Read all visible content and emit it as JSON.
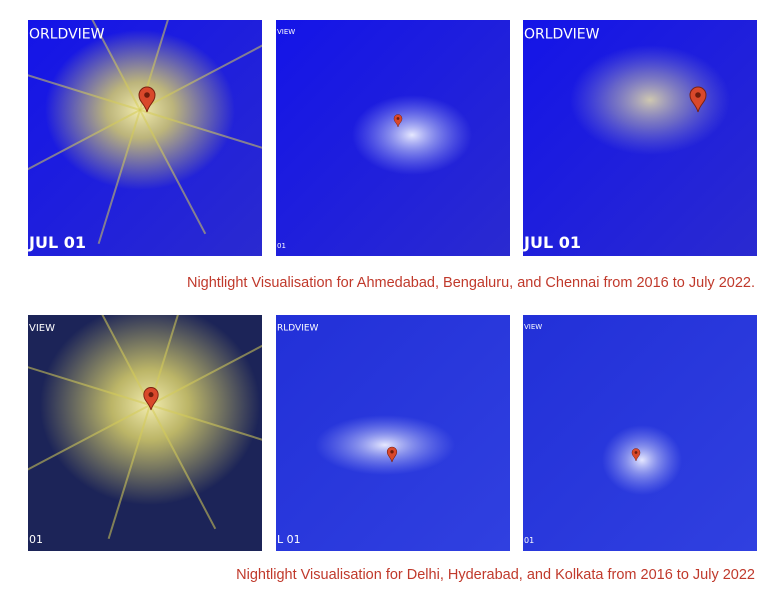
{
  "rows": [
    {
      "images": [
        {
          "top": "ORLDVIEW",
          "bottom": "JUL 01"
        },
        {
          "top": "VIEW",
          "bottom": "01"
        },
        {
          "top": "ORLDVIEW",
          "bottom": "JUL 01"
        }
      ],
      "caption": "Nightlight Visualisation for Ahmedabad, Bengaluru, and Chennai from 2016 to July 2022."
    },
    {
      "images": [
        {
          "top": "VIEW",
          "bottom": "01"
        },
        {
          "top": "RLDVIEW",
          "bottom": "L 01"
        },
        {
          "top": "VIEW",
          "bottom": "01"
        }
      ],
      "caption": "Nightlight Visualisation for Delhi, Hyderabad, and Kolkata from 2016 to July 2022"
    }
  ]
}
